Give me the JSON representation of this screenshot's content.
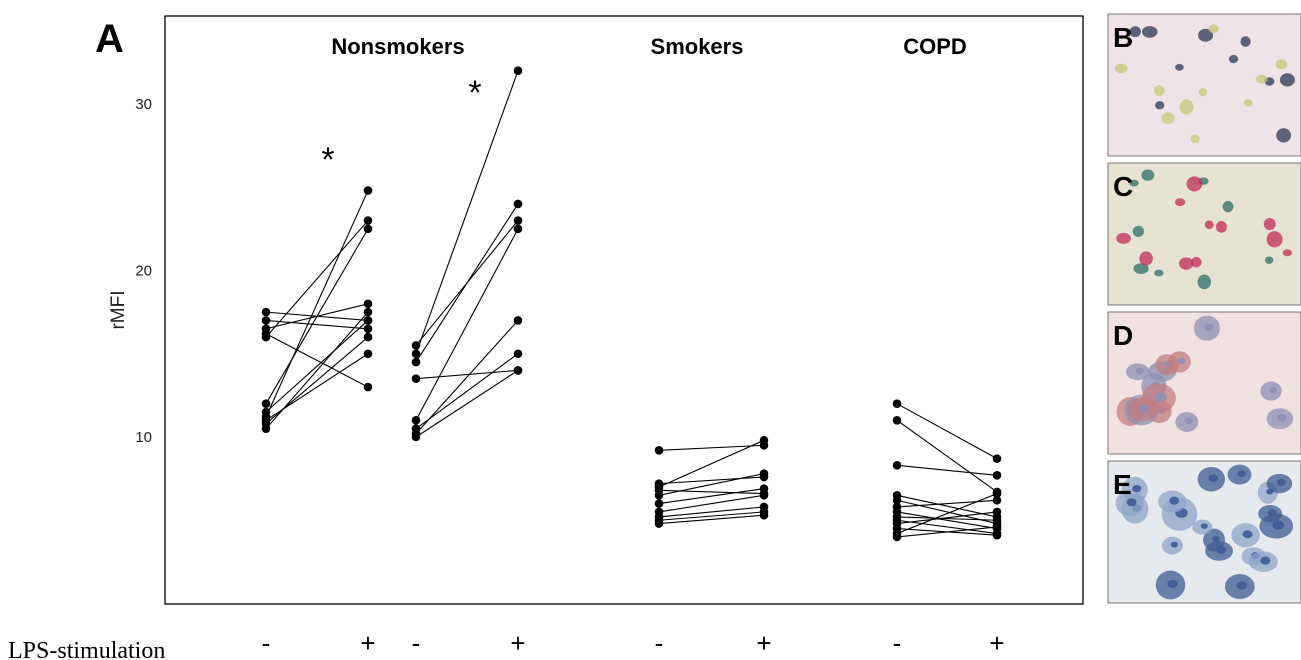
{
  "chart_data": {
    "type": "line",
    "panel_label": "A",
    "ylabel": "rMFI",
    "ylim": [
      0,
      35
    ],
    "yticks": [
      10,
      20,
      30
    ],
    "x_row_label": "LPS-stimulation",
    "x_signs": [
      "-",
      "+"
    ],
    "significance_marker": "*",
    "groups": [
      {
        "title": "Nonsmokers",
        "significant": true,
        "pairs": [
          [
            17.5,
            17.0
          ],
          [
            17.0,
            16.5
          ],
          [
            16.5,
            18.0
          ],
          [
            16.0,
            23.0
          ],
          [
            16.2,
            13.0
          ],
          [
            12.0,
            22.5
          ],
          [
            11.5,
            17.0
          ],
          [
            11.2,
            24.8
          ],
          [
            11.0,
            15.0
          ],
          [
            10.8,
            16.0
          ],
          [
            10.5,
            17.5
          ]
        ]
      },
      {
        "title": "",
        "significant": true,
        "pairs": [
          [
            15.5,
            23.0
          ],
          [
            15.0,
            32.0
          ],
          [
            14.5,
            24.0
          ],
          [
            13.5,
            14.0
          ],
          [
            11.0,
            22.5
          ],
          [
            10.5,
            15.0
          ],
          [
            10.2,
            17.0
          ],
          [
            10.0,
            14.0
          ]
        ]
      },
      {
        "title": "Smokers",
        "significant": false,
        "pairs": [
          [
            9.2,
            9.5
          ],
          [
            7.2,
            7.6
          ],
          [
            7.0,
            9.8
          ],
          [
            6.8,
            6.6
          ],
          [
            6.5,
            7.8
          ],
          [
            6.0,
            6.9
          ],
          [
            5.5,
            6.5
          ],
          [
            5.2,
            5.8
          ],
          [
            5.0,
            5.5
          ],
          [
            4.8,
            5.3
          ]
        ]
      },
      {
        "title": "COPD",
        "significant": false,
        "pairs": [
          [
            12.0,
            8.7
          ],
          [
            11.0,
            6.7
          ],
          [
            8.3,
            7.7
          ],
          [
            6.5,
            5.2
          ],
          [
            6.2,
            4.8
          ],
          [
            5.8,
            6.2
          ],
          [
            5.5,
            4.5
          ],
          [
            5.2,
            5.0
          ],
          [
            5.0,
            4.2
          ],
          [
            4.8,
            5.5
          ],
          [
            4.5,
            4.1
          ],
          [
            4.2,
            6.6
          ],
          [
            4.0,
            4.6
          ]
        ]
      }
    ]
  },
  "micrographs": [
    {
      "label": "B",
      "background": "#efe3e8",
      "cell_color": "#2a3552",
      "cell_color_alt": "#c9c47a"
    },
    {
      "label": "C",
      "background": "#e6e3d3",
      "cell_color": "#c22a55",
      "cell_color_alt": "#2f6e6a"
    },
    {
      "label": "D",
      "background": "#f1e1e0",
      "cell_color": "#c27d80",
      "cell_color_alt": "#8d8fb4"
    },
    {
      "label": "E",
      "background": "#e6e9ee",
      "cell_color": "#8fa4c9",
      "cell_color_alt": "#3f5b93"
    }
  ]
}
